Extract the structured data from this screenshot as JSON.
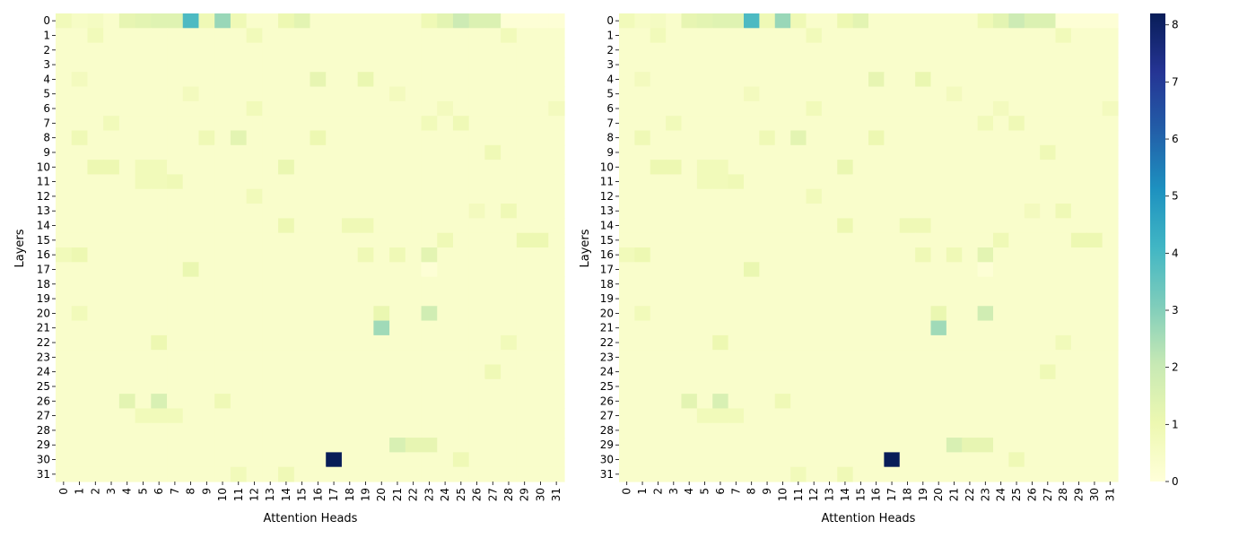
{
  "chart_data": [
    {
      "type": "heatmap",
      "title": "",
      "xlabel": "Attention Heads",
      "ylabel": "Layers",
      "x_ticks": [
        "0",
        "1",
        "2",
        "3",
        "4",
        "5",
        "6",
        "7",
        "8",
        "9",
        "10",
        "11",
        "12",
        "13",
        "14",
        "15",
        "16",
        "17",
        "18",
        "19",
        "20",
        "21",
        "22",
        "23",
        "24",
        "25",
        "26",
        "27",
        "28",
        "29",
        "30",
        "31"
      ],
      "y_ticks": [
        "0",
        "1",
        "2",
        "3",
        "4",
        "5",
        "6",
        "7",
        "8",
        "9",
        "10",
        "11",
        "12",
        "13",
        "14",
        "15",
        "16",
        "17",
        "18",
        "19",
        "20",
        "21",
        "22",
        "23",
        "24",
        "25",
        "26",
        "27",
        "28",
        "29",
        "30",
        "31"
      ],
      "colormap": "YlGnBu",
      "vmin": 0,
      "vmax": 8.2,
      "background_level": 0.35,
      "cells": [
        {
          "layer": 0,
          "head": 0,
          "value": 0.8
        },
        {
          "layer": 0,
          "head": 1,
          "value": 0.5
        },
        {
          "layer": 0,
          "head": 2,
          "value": 0.6
        },
        {
          "layer": 0,
          "head": 4,
          "value": 1.2
        },
        {
          "layer": 0,
          "head": 5,
          "value": 1.3
        },
        {
          "layer": 0,
          "head": 6,
          "value": 1.4
        },
        {
          "layer": 0,
          "head": 7,
          "value": 1.4
        },
        {
          "layer": 0,
          "head": 8,
          "value": 3.9
        },
        {
          "layer": 0,
          "head": 9,
          "value": 0.9
        },
        {
          "layer": 0,
          "head": 10,
          "value": 2.7
        },
        {
          "layer": 0,
          "head": 11,
          "value": 0.9
        },
        {
          "layer": 0,
          "head": 14,
          "value": 1.0
        },
        {
          "layer": 0,
          "head": 15,
          "value": 1.3
        },
        {
          "layer": 0,
          "head": 23,
          "value": 0.9
        },
        {
          "layer": 0,
          "head": 24,
          "value": 1.3
        },
        {
          "layer": 0,
          "head": 25,
          "value": 1.9
        },
        {
          "layer": 0,
          "head": 26,
          "value": 1.5
        },
        {
          "layer": 0,
          "head": 27,
          "value": 1.5
        },
        {
          "layer": 0,
          "head": 28,
          "value": 0.1
        },
        {
          "layer": 0,
          "head": 29,
          "value": 0.1
        },
        {
          "layer": 0,
          "head": 30,
          "value": 0.1
        },
        {
          "layer": 0,
          "head": 31,
          "value": 0.1
        },
        {
          "layer": 1,
          "head": 2,
          "value": 0.8
        },
        {
          "layer": 1,
          "head": 12,
          "value": 0.8
        },
        {
          "layer": 1,
          "head": 28,
          "value": 0.8
        },
        {
          "layer": 4,
          "head": 1,
          "value": 0.7
        },
        {
          "layer": 4,
          "head": 16,
          "value": 1.2
        },
        {
          "layer": 4,
          "head": 19,
          "value": 1.1
        },
        {
          "layer": 5,
          "head": 8,
          "value": 0.7
        },
        {
          "layer": 5,
          "head": 21,
          "value": 0.7
        },
        {
          "layer": 6,
          "head": 12,
          "value": 0.8
        },
        {
          "layer": 6,
          "head": 24,
          "value": 0.7
        },
        {
          "layer": 6,
          "head": 31,
          "value": 0.7
        },
        {
          "layer": 7,
          "head": 3,
          "value": 0.8
        },
        {
          "layer": 7,
          "head": 23,
          "value": 0.8
        },
        {
          "layer": 7,
          "head": 25,
          "value": 0.9
        },
        {
          "layer": 8,
          "head": 1,
          "value": 0.9
        },
        {
          "layer": 8,
          "head": 9,
          "value": 0.9
        },
        {
          "layer": 8,
          "head": 11,
          "value": 1.3
        },
        {
          "layer": 8,
          "head": 16,
          "value": 1.0
        },
        {
          "layer": 9,
          "head": 27,
          "value": 0.9
        },
        {
          "layer": 10,
          "head": 2,
          "value": 1.0
        },
        {
          "layer": 10,
          "head": 3,
          "value": 1.0
        },
        {
          "layer": 10,
          "head": 14,
          "value": 1.1
        },
        {
          "layer": 10,
          "head": 5,
          "value": 0.8
        },
        {
          "layer": 10,
          "head": 6,
          "value": 0.8
        },
        {
          "layer": 11,
          "head": 5,
          "value": 0.8
        },
        {
          "layer": 11,
          "head": 6,
          "value": 0.8
        },
        {
          "layer": 11,
          "head": 7,
          "value": 0.9
        },
        {
          "layer": 12,
          "head": 12,
          "value": 0.8
        },
        {
          "layer": 13,
          "head": 28,
          "value": 0.9
        },
        {
          "layer": 13,
          "head": 26,
          "value": 0.7
        },
        {
          "layer": 14,
          "head": 14,
          "value": 1.0
        },
        {
          "layer": 14,
          "head": 18,
          "value": 0.9
        },
        {
          "layer": 14,
          "head": 19,
          "value": 0.9
        },
        {
          "layer": 15,
          "head": 24,
          "value": 0.9
        },
        {
          "layer": 15,
          "head": 29,
          "value": 1.0
        },
        {
          "layer": 15,
          "head": 30,
          "value": 1.0
        },
        {
          "layer": 16,
          "head": 0,
          "value": 0.8
        },
        {
          "layer": 16,
          "head": 1,
          "value": 1.0
        },
        {
          "layer": 16,
          "head": 19,
          "value": 0.9
        },
        {
          "layer": 16,
          "head": 21,
          "value": 0.9
        },
        {
          "layer": 16,
          "head": 23,
          "value": 1.3
        },
        {
          "layer": 17,
          "head": 8,
          "value": 1.1
        },
        {
          "layer": 17,
          "head": 23,
          "value": 0.1
        },
        {
          "layer": 20,
          "head": 20,
          "value": 1.1
        },
        {
          "layer": 20,
          "head": 23,
          "value": 1.8
        },
        {
          "layer": 20,
          "head": 1,
          "value": 0.8
        },
        {
          "layer": 21,
          "head": 20,
          "value": 2.6
        },
        {
          "layer": 22,
          "head": 6,
          "value": 1.0
        },
        {
          "layer": 22,
          "head": 28,
          "value": 0.8
        },
        {
          "layer": 24,
          "head": 27,
          "value": 0.9
        },
        {
          "layer": 26,
          "head": 4,
          "value": 1.3
        },
        {
          "layer": 26,
          "head": 6,
          "value": 1.6
        },
        {
          "layer": 26,
          "head": 10,
          "value": 0.9
        },
        {
          "layer": 27,
          "head": 5,
          "value": 0.8
        },
        {
          "layer": 27,
          "head": 6,
          "value": 0.8
        },
        {
          "layer": 27,
          "head": 7,
          "value": 0.8
        },
        {
          "layer": 29,
          "head": 21,
          "value": 1.6
        },
        {
          "layer": 29,
          "head": 22,
          "value": 1.2
        },
        {
          "layer": 29,
          "head": 23,
          "value": 1.2
        },
        {
          "layer": 30,
          "head": 17,
          "value": 8.2
        },
        {
          "layer": 30,
          "head": 25,
          "value": 0.9
        },
        {
          "layer": 31,
          "head": 11,
          "value": 0.8
        },
        {
          "layer": 31,
          "head": 14,
          "value": 0.9
        }
      ]
    },
    {
      "type": "heatmap",
      "title": "",
      "xlabel": "Attention Heads",
      "ylabel": "Layers",
      "x_ticks": [
        "0",
        "1",
        "2",
        "3",
        "4",
        "5",
        "6",
        "7",
        "8",
        "9",
        "10",
        "11",
        "12",
        "13",
        "14",
        "15",
        "16",
        "17",
        "18",
        "19",
        "20",
        "21",
        "22",
        "23",
        "24",
        "25",
        "26",
        "27",
        "28",
        "29",
        "30",
        "31"
      ],
      "y_ticks": [
        "0",
        "1",
        "2",
        "3",
        "4",
        "5",
        "6",
        "7",
        "8",
        "9",
        "10",
        "11",
        "12",
        "13",
        "14",
        "15",
        "16",
        "17",
        "18",
        "19",
        "20",
        "21",
        "22",
        "23",
        "24",
        "25",
        "26",
        "27",
        "28",
        "29",
        "30",
        "31"
      ],
      "colormap": "YlGnBu",
      "vmin": 0,
      "vmax": 8.2,
      "background_level": 0.35,
      "cells": [
        {
          "layer": 0,
          "head": 0,
          "value": 0.8
        },
        {
          "layer": 0,
          "head": 1,
          "value": 0.5
        },
        {
          "layer": 0,
          "head": 2,
          "value": 0.6
        },
        {
          "layer": 0,
          "head": 4,
          "value": 1.2
        },
        {
          "layer": 0,
          "head": 5,
          "value": 1.3
        },
        {
          "layer": 0,
          "head": 6,
          "value": 1.4
        },
        {
          "layer": 0,
          "head": 7,
          "value": 1.4
        },
        {
          "layer": 0,
          "head": 8,
          "value": 3.9
        },
        {
          "layer": 0,
          "head": 9,
          "value": 0.9
        },
        {
          "layer": 0,
          "head": 10,
          "value": 2.7
        },
        {
          "layer": 0,
          "head": 11,
          "value": 0.9
        },
        {
          "layer": 0,
          "head": 14,
          "value": 1.0
        },
        {
          "layer": 0,
          "head": 15,
          "value": 1.3
        },
        {
          "layer": 0,
          "head": 23,
          "value": 0.9
        },
        {
          "layer": 0,
          "head": 24,
          "value": 1.3
        },
        {
          "layer": 0,
          "head": 25,
          "value": 1.9
        },
        {
          "layer": 0,
          "head": 26,
          "value": 1.5
        },
        {
          "layer": 0,
          "head": 27,
          "value": 1.5
        },
        {
          "layer": 0,
          "head": 28,
          "value": 0.1
        },
        {
          "layer": 0,
          "head": 29,
          "value": 0.1
        },
        {
          "layer": 0,
          "head": 30,
          "value": 0.1
        },
        {
          "layer": 0,
          "head": 31,
          "value": 0.1
        },
        {
          "layer": 1,
          "head": 2,
          "value": 0.8
        },
        {
          "layer": 1,
          "head": 12,
          "value": 0.8
        },
        {
          "layer": 1,
          "head": 28,
          "value": 0.8
        },
        {
          "layer": 4,
          "head": 1,
          "value": 0.7
        },
        {
          "layer": 4,
          "head": 16,
          "value": 1.2
        },
        {
          "layer": 4,
          "head": 19,
          "value": 1.1
        },
        {
          "layer": 5,
          "head": 8,
          "value": 0.7
        },
        {
          "layer": 5,
          "head": 21,
          "value": 0.7
        },
        {
          "layer": 6,
          "head": 12,
          "value": 0.8
        },
        {
          "layer": 6,
          "head": 24,
          "value": 0.7
        },
        {
          "layer": 6,
          "head": 31,
          "value": 0.7
        },
        {
          "layer": 7,
          "head": 3,
          "value": 0.8
        },
        {
          "layer": 7,
          "head": 23,
          "value": 0.8
        },
        {
          "layer": 7,
          "head": 25,
          "value": 0.9
        },
        {
          "layer": 8,
          "head": 1,
          "value": 0.9
        },
        {
          "layer": 8,
          "head": 9,
          "value": 0.9
        },
        {
          "layer": 8,
          "head": 11,
          "value": 1.3
        },
        {
          "layer": 8,
          "head": 16,
          "value": 1.0
        },
        {
          "layer": 9,
          "head": 27,
          "value": 0.9
        },
        {
          "layer": 10,
          "head": 2,
          "value": 1.0
        },
        {
          "layer": 10,
          "head": 3,
          "value": 1.0
        },
        {
          "layer": 10,
          "head": 14,
          "value": 1.1
        },
        {
          "layer": 10,
          "head": 5,
          "value": 0.8
        },
        {
          "layer": 10,
          "head": 6,
          "value": 0.8
        },
        {
          "layer": 11,
          "head": 5,
          "value": 0.8
        },
        {
          "layer": 11,
          "head": 6,
          "value": 0.8
        },
        {
          "layer": 11,
          "head": 7,
          "value": 0.9
        },
        {
          "layer": 12,
          "head": 12,
          "value": 0.8
        },
        {
          "layer": 13,
          "head": 28,
          "value": 0.9
        },
        {
          "layer": 13,
          "head": 26,
          "value": 0.7
        },
        {
          "layer": 14,
          "head": 14,
          "value": 1.0
        },
        {
          "layer": 14,
          "head": 18,
          "value": 0.9
        },
        {
          "layer": 14,
          "head": 19,
          "value": 0.9
        },
        {
          "layer": 15,
          "head": 24,
          "value": 0.9
        },
        {
          "layer": 15,
          "head": 29,
          "value": 1.0
        },
        {
          "layer": 15,
          "head": 30,
          "value": 1.0
        },
        {
          "layer": 16,
          "head": 0,
          "value": 0.8
        },
        {
          "layer": 16,
          "head": 1,
          "value": 1.0
        },
        {
          "layer": 16,
          "head": 19,
          "value": 0.9
        },
        {
          "layer": 16,
          "head": 21,
          "value": 0.9
        },
        {
          "layer": 16,
          "head": 23,
          "value": 1.3
        },
        {
          "layer": 17,
          "head": 8,
          "value": 1.1
        },
        {
          "layer": 17,
          "head": 23,
          "value": 0.1
        },
        {
          "layer": 20,
          "head": 20,
          "value": 1.1
        },
        {
          "layer": 20,
          "head": 23,
          "value": 1.8
        },
        {
          "layer": 20,
          "head": 1,
          "value": 0.8
        },
        {
          "layer": 21,
          "head": 20,
          "value": 2.6
        },
        {
          "layer": 22,
          "head": 6,
          "value": 1.0
        },
        {
          "layer": 22,
          "head": 28,
          "value": 0.8
        },
        {
          "layer": 24,
          "head": 27,
          "value": 0.9
        },
        {
          "layer": 26,
          "head": 4,
          "value": 1.3
        },
        {
          "layer": 26,
          "head": 6,
          "value": 1.6
        },
        {
          "layer": 26,
          "head": 10,
          "value": 0.9
        },
        {
          "layer": 27,
          "head": 5,
          "value": 0.8
        },
        {
          "layer": 27,
          "head": 6,
          "value": 0.8
        },
        {
          "layer": 27,
          "head": 7,
          "value": 0.8
        },
        {
          "layer": 29,
          "head": 21,
          "value": 1.6
        },
        {
          "layer": 29,
          "head": 22,
          "value": 1.2
        },
        {
          "layer": 29,
          "head": 23,
          "value": 1.2
        },
        {
          "layer": 30,
          "head": 17,
          "value": 8.2
        },
        {
          "layer": 30,
          "head": 25,
          "value": 0.9
        },
        {
          "layer": 31,
          "head": 11,
          "value": 0.8
        },
        {
          "layer": 31,
          "head": 14,
          "value": 0.9
        }
      ]
    }
  ],
  "colorbar": {
    "ticks": [
      "0",
      "1",
      "2",
      "3",
      "4",
      "5",
      "6",
      "7",
      "8"
    ],
    "tick_values": [
      0,
      1,
      2,
      3,
      4,
      5,
      6,
      7,
      8
    ]
  }
}
